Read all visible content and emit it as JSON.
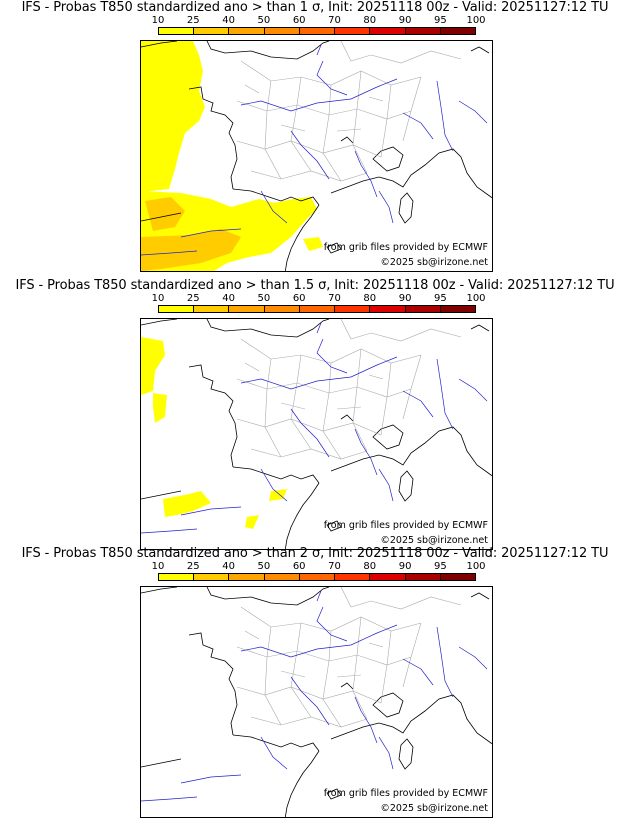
{
  "panels": [
    {
      "title": "IFS - Probas T850  standardized ano > than 1 σ, Init: 20251118 00z - Valid: 20251127:12 TU",
      "credit_source": "from grib files provided by ECMWF",
      "credit_copyright": "©2025 sb@irizone.net",
      "probability_areas": "large"
    },
    {
      "title": "IFS - Probas T850  standardized ano > than 1.5 σ, Init: 20251118 00z - Valid: 20251127:12 TU",
      "credit_source": "from grib files provided by ECMWF",
      "credit_copyright": "©2025 sb@irizone.net",
      "probability_areas": "small"
    },
    {
      "title": "IFS - Probas T850  standardized ano > than 2 σ, Init: 20251118 00z - Valid: 20251127:12 TU",
      "credit_source": "from grib files provided by ECMWF",
      "credit_copyright": "©2025 sb@irizone.net",
      "probability_areas": "none"
    }
  ],
  "scale": {
    "labels": [
      "10",
      "25",
      "40",
      "50",
      "60",
      "70",
      "80",
      "90",
      "95",
      "100"
    ],
    "colors": [
      "#ffff00",
      "#ffcc00",
      "#ffa500",
      "#ff8c00",
      "#ff6600",
      "#ff3300",
      "#dd0000",
      "#aa0000",
      "#800000"
    ]
  },
  "map_colors": {
    "coast": "#000000",
    "rivers": "#2222cc",
    "admin": "#aaaaaa",
    "prob_light": "#ffff00",
    "prob_dark": "#ffcc00"
  }
}
